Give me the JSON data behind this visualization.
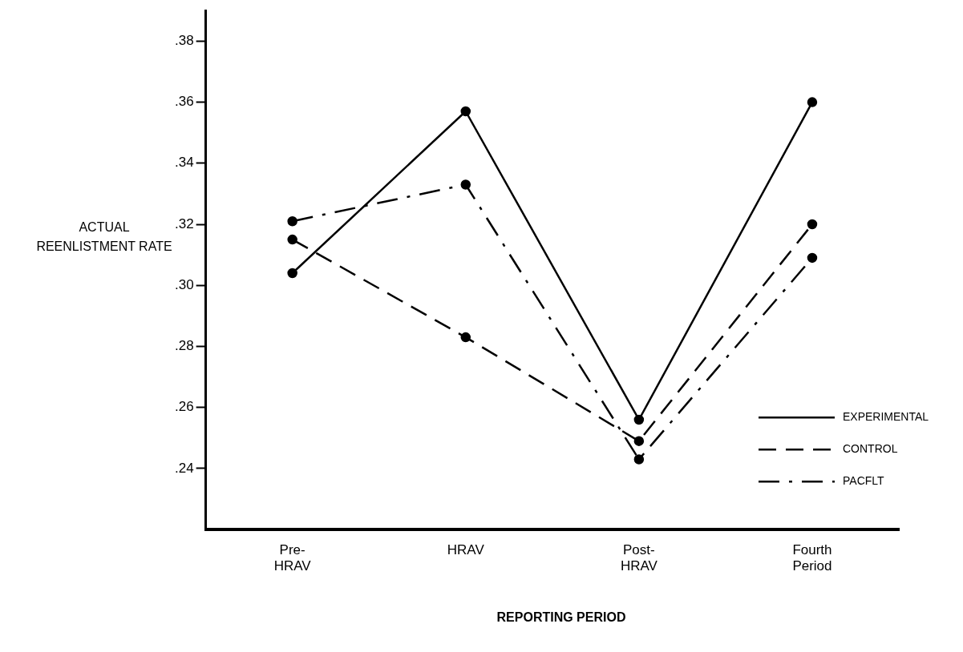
{
  "chart_data": {
    "type": "line",
    "xlabel": "REPORTING PERIOD",
    "ylabel": "ACTUAL REENLISTMENT RATE",
    "categories": [
      "Pre- HRAV",
      "HRAV",
      "Post- HRAV",
      "Fourth Period"
    ],
    "series": [
      {
        "name": "EXPERIMENTAL",
        "color": "#000000",
        "line_style": "solid",
        "values": [
          0.304,
          0.357,
          0.256,
          0.36
        ]
      },
      {
        "name": "CONTROL",
        "color": "#000000",
        "line_style": "dashed",
        "values": [
          0.315,
          0.283,
          0.249,
          0.32
        ]
      },
      {
        "name": "PACFLT",
        "color": "#000000",
        "line_style": "dashdot",
        "values": [
          0.321,
          0.333,
          0.243,
          0.309
        ]
      }
    ],
    "ylim": [
      0.22,
      0.39
    ],
    "yticks": [
      {
        "value": 0.24,
        "label": ".24"
      },
      {
        "value": 0.26,
        "label": ".26"
      },
      {
        "value": 0.28,
        "label": ".28"
      },
      {
        "value": 0.3,
        "label": ".30"
      },
      {
        "value": 0.32,
        "label": ".32"
      },
      {
        "value": 0.34,
        "label": ".34"
      },
      {
        "value": 0.36,
        "label": ".36"
      },
      {
        "value": 0.38,
        "label": ".38"
      }
    ],
    "grid": false,
    "legend": "right",
    "marker": "circle"
  }
}
